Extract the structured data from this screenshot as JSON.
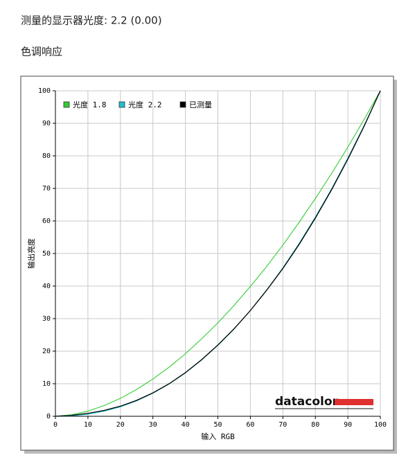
{
  "header": {
    "measurement": "测量的显示器光度:  2.2 (0.00)",
    "section": "色调响应"
  },
  "chart_data": {
    "type": "line",
    "x_label": "输入 RGB",
    "y_label": "输出亮度",
    "logo": "datacolor",
    "x": [
      0,
      5,
      10,
      15,
      20,
      25,
      30,
      35,
      40,
      45,
      50,
      55,
      60,
      65,
      70,
      75,
      80,
      85,
      90,
      95,
      100
    ],
    "series": [
      {
        "name": "光度 1.8",
        "color": "#33cc33",
        "values": [
          0,
          0.46,
          1.58,
          3.29,
          5.52,
          8.25,
          11.45,
          15.1,
          19.2,
          23.8,
          28.7,
          34.1,
          39.9,
          46.0,
          52.6,
          59.6,
          66.9,
          74.6,
          82.7,
          91.2,
          100
        ]
      },
      {
        "name": "光度 2.2",
        "color": "#22bfcc",
        "values": [
          0,
          0.14,
          0.63,
          1.54,
          2.9,
          4.74,
          7.07,
          9.93,
          13.3,
          17.3,
          21.8,
          26.8,
          32.5,
          38.8,
          45.6,
          53.1,
          61.2,
          69.9,
          79.3,
          89.3,
          100
        ]
      },
      {
        "name": "已测量",
        "color": "#000000",
        "values": [
          0,
          0.3,
          0.9,
          1.8,
          3.1,
          4.9,
          7.2,
          10.0,
          13.4,
          17.4,
          21.9,
          26.9,
          32.5,
          38.7,
          45.4,
          52.8,
          60.9,
          69.6,
          79.0,
          89.1,
          100
        ]
      }
    ],
    "xlim": [
      0,
      100
    ],
    "ylim": [
      0,
      100
    ],
    "xticks": [
      0,
      10,
      20,
      30,
      40,
      50,
      60,
      70,
      80,
      90,
      100
    ],
    "yticks": [
      0,
      10,
      20,
      30,
      40,
      50,
      60,
      70,
      80,
      90,
      100
    ],
    "grid": true,
    "legend": "top-left"
  }
}
